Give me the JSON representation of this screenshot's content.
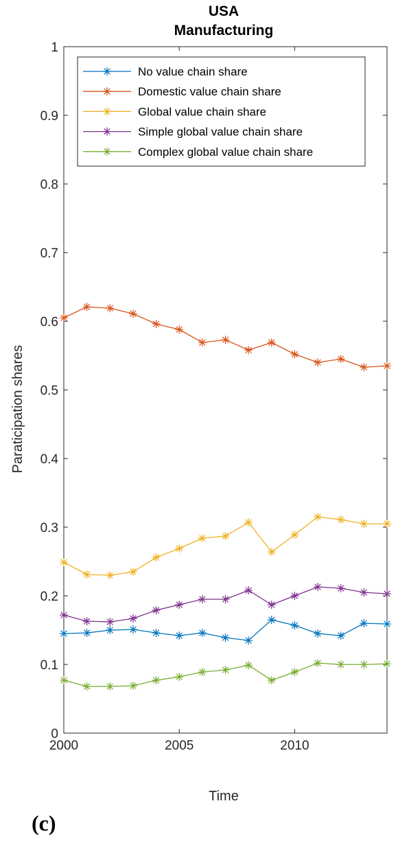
{
  "figure": {
    "panel_label": "(c)"
  },
  "chart_data": {
    "type": "line",
    "title": [
      "USA",
      "Manufacturing"
    ],
    "xlabel": "Time",
    "ylabel": "Paraticipation shares",
    "xlim": [
      2000,
      2014
    ],
    "ylim": [
      0,
      1
    ],
    "xticks": [
      2000,
      2005,
      2010
    ],
    "yticks": [
      0,
      0.1,
      0.2,
      0.3,
      0.4,
      0.5,
      0.6,
      0.7,
      0.8,
      0.9,
      1
    ],
    "ytick_labels": [
      "0",
      "0.1",
      "0.2",
      "0.3",
      "0.4",
      "0.5",
      "0.6",
      "0.7",
      "0.8",
      "0.9",
      "1"
    ],
    "grid": false,
    "legend_position": "top",
    "marker": "asterisk",
    "x": [
      2000,
      2001,
      2002,
      2003,
      2004,
      2005,
      2006,
      2007,
      2008,
      2009,
      2010,
      2011,
      2012,
      2013,
      2014
    ],
    "series": [
      {
        "name": "No value chain share",
        "color": "#0072BD",
        "values": [
          0.145,
          0.146,
          0.15,
          0.151,
          0.146,
          0.142,
          0.146,
          0.139,
          0.135,
          0.165,
          0.157,
          0.145,
          0.142,
          0.16,
          0.159
        ]
      },
      {
        "name": "Domestic value chain share",
        "color": "#D95319",
        "values": [
          0.605,
          0.621,
          0.619,
          0.611,
          0.596,
          0.588,
          0.569,
          0.573,
          0.558,
          0.569,
          0.552,
          0.54,
          0.545,
          0.533,
          0.535
        ]
      },
      {
        "name": "Global value chain share",
        "color": "#EDB120",
        "values": [
          0.249,
          0.231,
          0.23,
          0.235,
          0.256,
          0.269,
          0.284,
          0.287,
          0.307,
          0.264,
          0.289,
          0.315,
          0.311,
          0.305,
          0.305
        ]
      },
      {
        "name": "Simple global value chain share",
        "color": "#7E2F8E",
        "values": [
          0.172,
          0.163,
          0.162,
          0.167,
          0.179,
          0.187,
          0.195,
          0.195,
          0.208,
          0.187,
          0.2,
          0.213,
          0.211,
          0.205,
          0.203
        ]
      },
      {
        "name": "Complex global value chain share",
        "color": "#77AC30",
        "values": [
          0.077,
          0.068,
          0.068,
          0.069,
          0.077,
          0.082,
          0.089,
          0.092,
          0.099,
          0.077,
          0.089,
          0.102,
          0.1,
          0.1,
          0.101
        ]
      }
    ]
  }
}
